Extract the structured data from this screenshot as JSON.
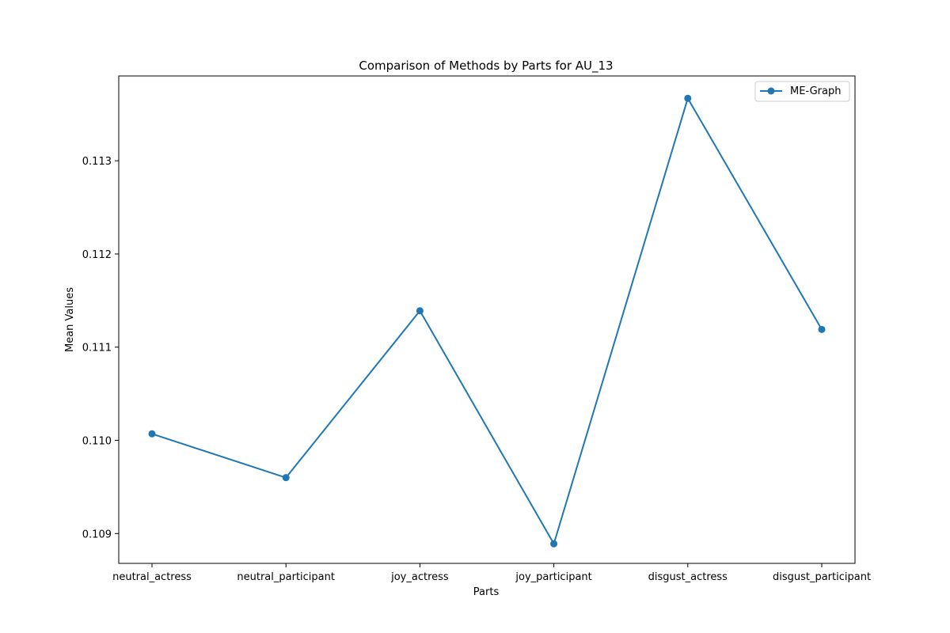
{
  "chart_data": {
    "type": "line",
    "title": "Comparison of Methods by Parts for AU_13",
    "xlabel": "Parts",
    "ylabel": "Mean Values",
    "categories": [
      "neutral_actress",
      "neutral_participant",
      "joy_actress",
      "joy_participant",
      "disgust_actress",
      "disgust_participant"
    ],
    "series": [
      {
        "name": "ME-Graph",
        "color": "#1f77b4",
        "marker": "circle",
        "values": [
          0.11007,
          0.1096,
          0.11139,
          0.10889,
          0.11367,
          0.11119
        ]
      }
    ],
    "ylim": [
      0.10868,
      0.11391
    ],
    "yticks": [
      0.109,
      0.11,
      0.111,
      0.112,
      0.113
    ],
    "ytick_labels": [
      "0.109",
      "0.110",
      "0.111",
      "0.112",
      "0.113"
    ],
    "grid": false,
    "legend": "top-right"
  }
}
